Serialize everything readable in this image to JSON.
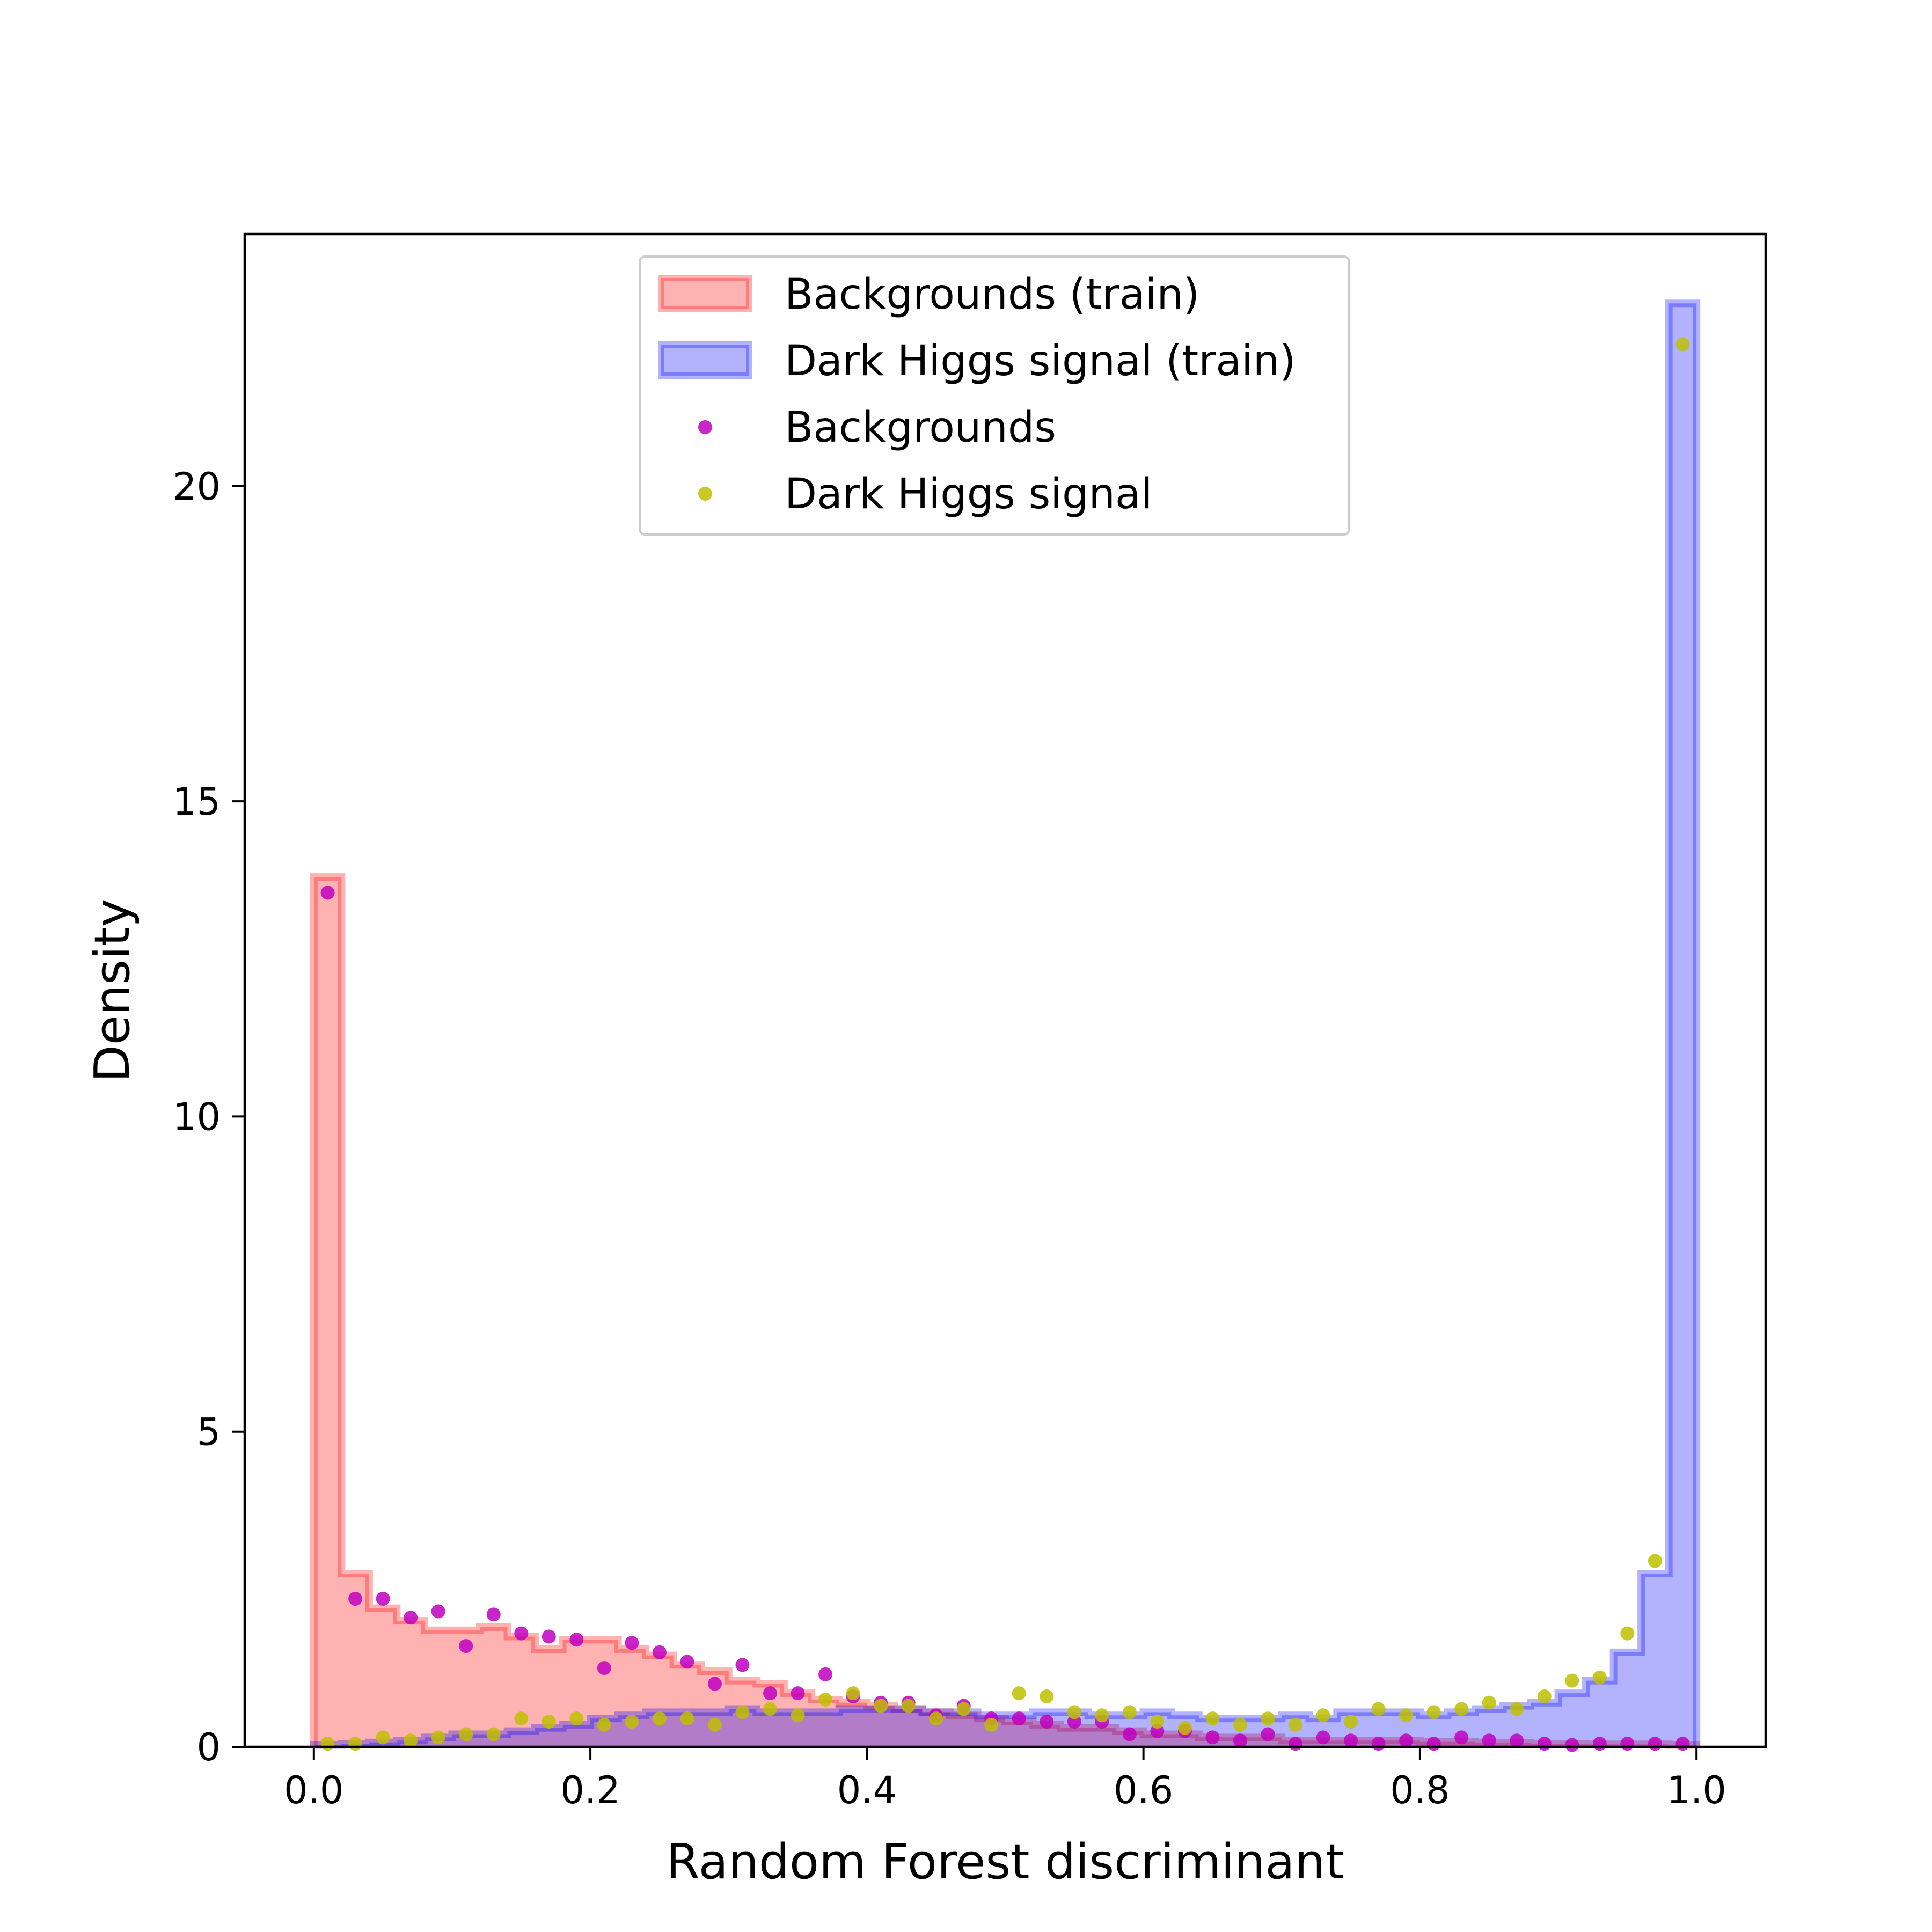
{
  "chart_data": {
    "type": "histogram",
    "xlabel": "Random Forest discriminant",
    "ylabel": "Density",
    "xlim": [
      -0.05,
      1.05
    ],
    "ylim": [
      0,
      24
    ],
    "xticks": [
      0.0,
      0.2,
      0.4,
      0.6,
      0.8,
      1.0
    ],
    "xtick_labels": [
      "0.0",
      "0.2",
      "0.4",
      "0.6",
      "0.8",
      "1.0"
    ],
    "yticks": [
      0,
      5,
      10,
      15,
      20
    ],
    "ytick_labels": [
      "0",
      "5",
      "10",
      "15",
      "20"
    ],
    "bin_edges": [
      0.0,
      0.02,
      0.04,
      0.06,
      0.08,
      0.1,
      0.12,
      0.14,
      0.16,
      0.18,
      0.2,
      0.22,
      0.24,
      0.26,
      0.28,
      0.3,
      0.32,
      0.34,
      0.36,
      0.38,
      0.4,
      0.42,
      0.44,
      0.46,
      0.48,
      0.5,
      0.52,
      0.54,
      0.56,
      0.58,
      0.6,
      0.62,
      0.64,
      0.66,
      0.68,
      0.7,
      0.72,
      0.74,
      0.76,
      0.78,
      0.8,
      0.82,
      0.84,
      0.86,
      0.88,
      0.9,
      0.92,
      0.94,
      0.96,
      0.98,
      1.0
    ],
    "legend": {
      "position": "upper center",
      "entries": [
        "Backgrounds (train)",
        "Dark Higgs signal (train)",
        "Backgrounds",
        "Dark Higgs signal"
      ]
    },
    "series": [
      {
        "name": "Backgrounds (train)",
        "kind": "step-filled",
        "color": "#ff0000",
        "values": [
          13.8,
          2.75,
          2.2,
          2.0,
          1.85,
          1.85,
          1.9,
          1.75,
          1.55,
          1.7,
          1.7,
          1.55,
          1.45,
          1.3,
          1.2,
          1.05,
          1.0,
          0.85,
          0.75,
          0.7,
          0.65,
          0.6,
          0.55,
          0.5,
          0.45,
          0.4,
          0.35,
          0.3,
          0.3,
          0.25,
          0.2,
          0.2,
          0.15,
          0.15,
          0.15,
          0.1,
          0.1,
          0.1,
          0.1,
          0.1,
          0.08,
          0.08,
          0.06,
          0.06,
          0.05,
          0.05,
          0.04,
          0.04,
          0.04,
          0.03
        ]
      },
      {
        "name": "Dark Higgs signal (train)",
        "kind": "step-filled",
        "color": "#0000ff",
        "values": [
          0.03,
          0.05,
          0.07,
          0.1,
          0.15,
          0.2,
          0.2,
          0.25,
          0.3,
          0.35,
          0.45,
          0.5,
          0.55,
          0.55,
          0.55,
          0.6,
          0.55,
          0.55,
          0.55,
          0.6,
          0.6,
          0.6,
          0.55,
          0.55,
          0.5,
          0.5,
          0.55,
          0.55,
          0.5,
          0.5,
          0.55,
          0.5,
          0.45,
          0.45,
          0.45,
          0.5,
          0.45,
          0.55,
          0.55,
          0.55,
          0.5,
          0.55,
          0.6,
          0.65,
          0.7,
          0.85,
          1.05,
          1.5,
          2.75,
          22.9
        ]
      },
      {
        "name": "Backgrounds",
        "kind": "points",
        "color": "#bf00bf",
        "x": [
          0.01,
          0.03,
          0.05,
          0.07,
          0.09,
          0.11,
          0.13,
          0.15,
          0.17,
          0.19,
          0.21,
          0.23,
          0.25,
          0.27,
          0.29,
          0.31,
          0.33,
          0.35,
          0.37,
          0.39,
          0.41,
          0.43,
          0.45,
          0.47,
          0.49,
          0.51,
          0.53,
          0.55,
          0.57,
          0.59,
          0.61,
          0.63,
          0.65,
          0.67,
          0.69,
          0.71,
          0.73,
          0.75,
          0.77,
          0.79,
          0.81,
          0.83,
          0.85,
          0.87,
          0.89,
          0.91,
          0.93,
          0.95,
          0.97,
          0.99
        ],
        "y": [
          13.55,
          2.35,
          2.35,
          2.05,
          2.15,
          1.6,
          2.1,
          1.8,
          1.75,
          1.7,
          1.25,
          1.65,
          1.5,
          1.35,
          1.0,
          1.3,
          0.85,
          0.85,
          1.15,
          0.8,
          0.7,
          0.7,
          0.5,
          0.65,
          0.45,
          0.45,
          0.4,
          0.4,
          0.4,
          0.2,
          0.25,
          0.25,
          0.15,
          0.1,
          0.2,
          0.05,
          0.15,
          0.1,
          0.05,
          0.1,
          0.05,
          0.15,
          0.1,
          0.1,
          0.05,
          0.03,
          0.05,
          0.05,
          0.05,
          0.05
        ]
      },
      {
        "name": "Dark Higgs signal",
        "kind": "points",
        "color": "#bfbf00",
        "x": [
          0.01,
          0.03,
          0.05,
          0.07,
          0.09,
          0.11,
          0.13,
          0.15,
          0.17,
          0.19,
          0.21,
          0.23,
          0.25,
          0.27,
          0.29,
          0.31,
          0.33,
          0.35,
          0.37,
          0.39,
          0.41,
          0.43,
          0.45,
          0.47,
          0.49,
          0.51,
          0.53,
          0.55,
          0.57,
          0.59,
          0.61,
          0.63,
          0.65,
          0.67,
          0.69,
          0.71,
          0.73,
          0.75,
          0.77,
          0.79,
          0.81,
          0.83,
          0.85,
          0.87,
          0.89,
          0.91,
          0.93,
          0.95,
          0.97,
          0.99
        ],
        "y": [
          0.05,
          0.05,
          0.15,
          0.1,
          0.15,
          0.2,
          0.2,
          0.45,
          0.4,
          0.45,
          0.35,
          0.4,
          0.45,
          0.45,
          0.35,
          0.55,
          0.6,
          0.5,
          0.75,
          0.85,
          0.65,
          0.65,
          0.45,
          0.6,
          0.35,
          0.85,
          0.8,
          0.55,
          0.5,
          0.55,
          0.4,
          0.3,
          0.45,
          0.35,
          0.45,
          0.35,
          0.5,
          0.4,
          0.6,
          0.5,
          0.55,
          0.6,
          0.7,
          0.6,
          0.8,
          1.05,
          1.1,
          1.8,
          2.95,
          22.25
        ]
      }
    ]
  }
}
